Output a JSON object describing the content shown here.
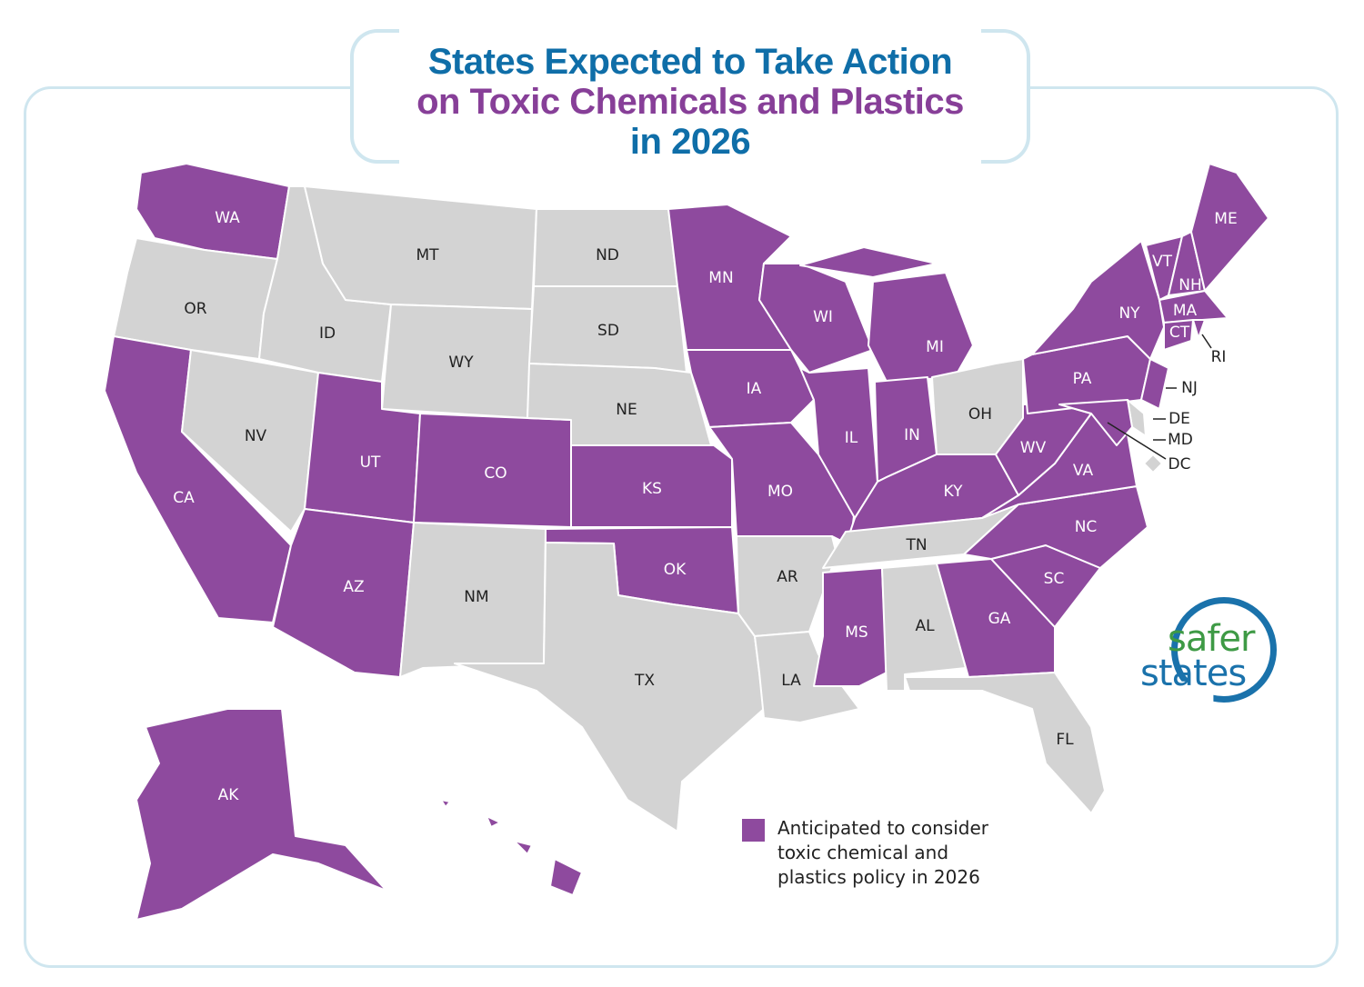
{
  "title": {
    "line1": "States Expected to Take Action",
    "line2": "on Toxic Chemicals and Plastics",
    "line3": "in 2026"
  },
  "colors": {
    "action": "#8e4a9e",
    "no_action": "#d3d3d3",
    "title_blue": "#0f6ea8",
    "title_purple": "#873f98",
    "frame": "#cfe6ef"
  },
  "legend": {
    "label": "Anticipated to consider toxic chemical and plastics policy in 2026"
  },
  "logo": {
    "word1": "safer",
    "word2": "states"
  },
  "states": [
    {
      "abbr": "WA",
      "action": true
    },
    {
      "abbr": "OR",
      "action": false
    },
    {
      "abbr": "CA",
      "action": true
    },
    {
      "abbr": "NV",
      "action": false
    },
    {
      "abbr": "ID",
      "action": false
    },
    {
      "abbr": "MT",
      "action": false
    },
    {
      "abbr": "WY",
      "action": false
    },
    {
      "abbr": "UT",
      "action": true
    },
    {
      "abbr": "AZ",
      "action": true
    },
    {
      "abbr": "CO",
      "action": true
    },
    {
      "abbr": "NM",
      "action": false
    },
    {
      "abbr": "ND",
      "action": false
    },
    {
      "abbr": "SD",
      "action": false
    },
    {
      "abbr": "NE",
      "action": false
    },
    {
      "abbr": "KS",
      "action": true
    },
    {
      "abbr": "OK",
      "action": true
    },
    {
      "abbr": "TX",
      "action": false
    },
    {
      "abbr": "MN",
      "action": true
    },
    {
      "abbr": "IA",
      "action": true
    },
    {
      "abbr": "MO",
      "action": true
    },
    {
      "abbr": "AR",
      "action": false
    },
    {
      "abbr": "LA",
      "action": false
    },
    {
      "abbr": "WI",
      "action": true
    },
    {
      "abbr": "IL",
      "action": true
    },
    {
      "abbr": "MI",
      "action": true
    },
    {
      "abbr": "IN",
      "action": true
    },
    {
      "abbr": "OH",
      "action": false
    },
    {
      "abbr": "KY",
      "action": true
    },
    {
      "abbr": "TN",
      "action": false
    },
    {
      "abbr": "MS",
      "action": true
    },
    {
      "abbr": "AL",
      "action": false
    },
    {
      "abbr": "GA",
      "action": true
    },
    {
      "abbr": "FL",
      "action": false
    },
    {
      "abbr": "SC",
      "action": true
    },
    {
      "abbr": "NC",
      "action": true
    },
    {
      "abbr": "VA",
      "action": true
    },
    {
      "abbr": "WV",
      "action": true
    },
    {
      "abbr": "PA",
      "action": true
    },
    {
      "abbr": "NY",
      "action": true
    },
    {
      "abbr": "NJ",
      "action": true
    },
    {
      "abbr": "DE",
      "action": false
    },
    {
      "abbr": "MD",
      "action": true
    },
    {
      "abbr": "DC",
      "action": false
    },
    {
      "abbr": "VT",
      "action": true
    },
    {
      "abbr": "NH",
      "action": true
    },
    {
      "abbr": "ME",
      "action": true
    },
    {
      "abbr": "MA",
      "action": true
    },
    {
      "abbr": "CT",
      "action": true
    },
    {
      "abbr": "RI",
      "action": true
    },
    {
      "abbr": "AK",
      "action": true
    },
    {
      "abbr": "HI",
      "action": true
    }
  ]
}
